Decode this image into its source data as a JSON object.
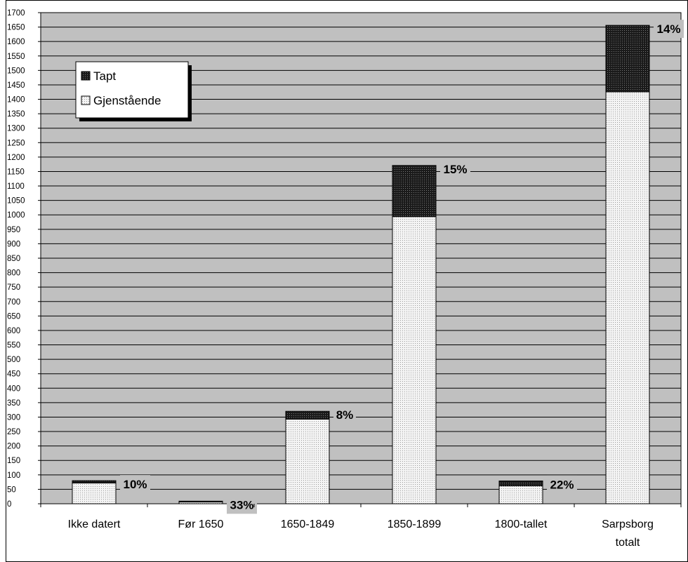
{
  "chart_data": {
    "type": "bar",
    "stacked": true,
    "categories": [
      "Ikke datert",
      "Før 1650",
      "1650-1849",
      "1850-1899",
      "1800-tallet",
      "Sarpsborg totalt"
    ],
    "category_lines": [
      [
        "Ikke datert"
      ],
      [
        "Før 1650"
      ],
      [
        "1650-1849"
      ],
      [
        "1850-1899"
      ],
      [
        "1800-tallet"
      ],
      [
        "Sarpsborg",
        "totalt"
      ]
    ],
    "series": [
      {
        "name": "Gjenstående",
        "values": [
          72,
          6,
          293,
          994,
          62,
          1426
        ],
        "color": "#ededed",
        "pattern": "dots-light"
      },
      {
        "name": "Tapt",
        "values": [
          8,
          3,
          27,
          177,
          17,
          230
        ],
        "color": "#262626",
        "pattern": "dots-dark"
      }
    ],
    "data_labels": [
      "10%",
      "33%",
      "8%",
      "15%",
      "22%",
      "14%"
    ],
    "ylim": [
      0,
      1700
    ],
    "ytick_step": 50,
    "yticks": [
      "0",
      "50",
      "100",
      "150",
      "200",
      "250",
      "300",
      "350",
      "400",
      "450",
      "500",
      "550",
      "600",
      "650",
      "700",
      "750",
      "800",
      "850",
      "900",
      "950",
      "1000",
      "1050",
      "1100",
      "1150",
      "1200",
      "1250",
      "1300",
      "1350",
      "1400",
      "1450",
      "1500",
      "1550",
      "1600",
      "1650",
      "1700"
    ],
    "plot_background": "#c0c0c0",
    "grid": true,
    "legend": {
      "placement": "top-left",
      "entries": [
        "Tapt",
        "Gjenstående"
      ]
    },
    "title": "",
    "xlabel": "",
    "ylabel": ""
  }
}
